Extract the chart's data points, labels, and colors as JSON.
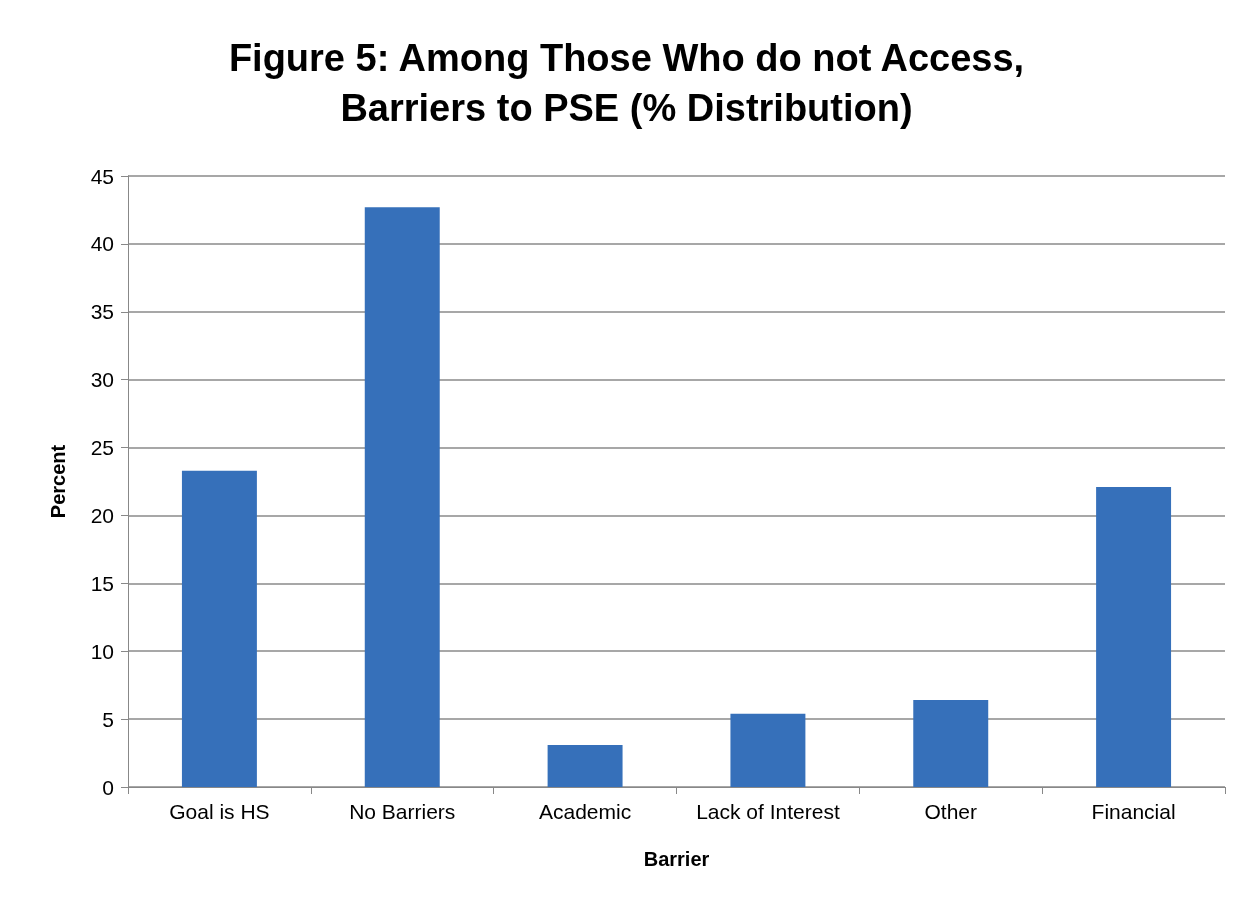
{
  "chart_data": {
    "type": "bar",
    "title": "Figure 5: Among Those Who do not Access,\nBarriers to PSE (% Distribution)",
    "xlabel": "Barrier",
    "ylabel": "Percent",
    "categories": [
      "Goal is HS",
      "No Barriers",
      "Academic",
      "Lack of Interest",
      "Other",
      "Financial"
    ],
    "values": [
      23.3,
      42.7,
      3.1,
      5.4,
      6.4,
      22.1
    ],
    "color": "#3670ba",
    "ylim": [
      0,
      45
    ],
    "yticks": [
      0,
      5,
      10,
      15,
      20,
      25,
      30,
      35,
      40,
      45
    ],
    "grid": "y"
  }
}
